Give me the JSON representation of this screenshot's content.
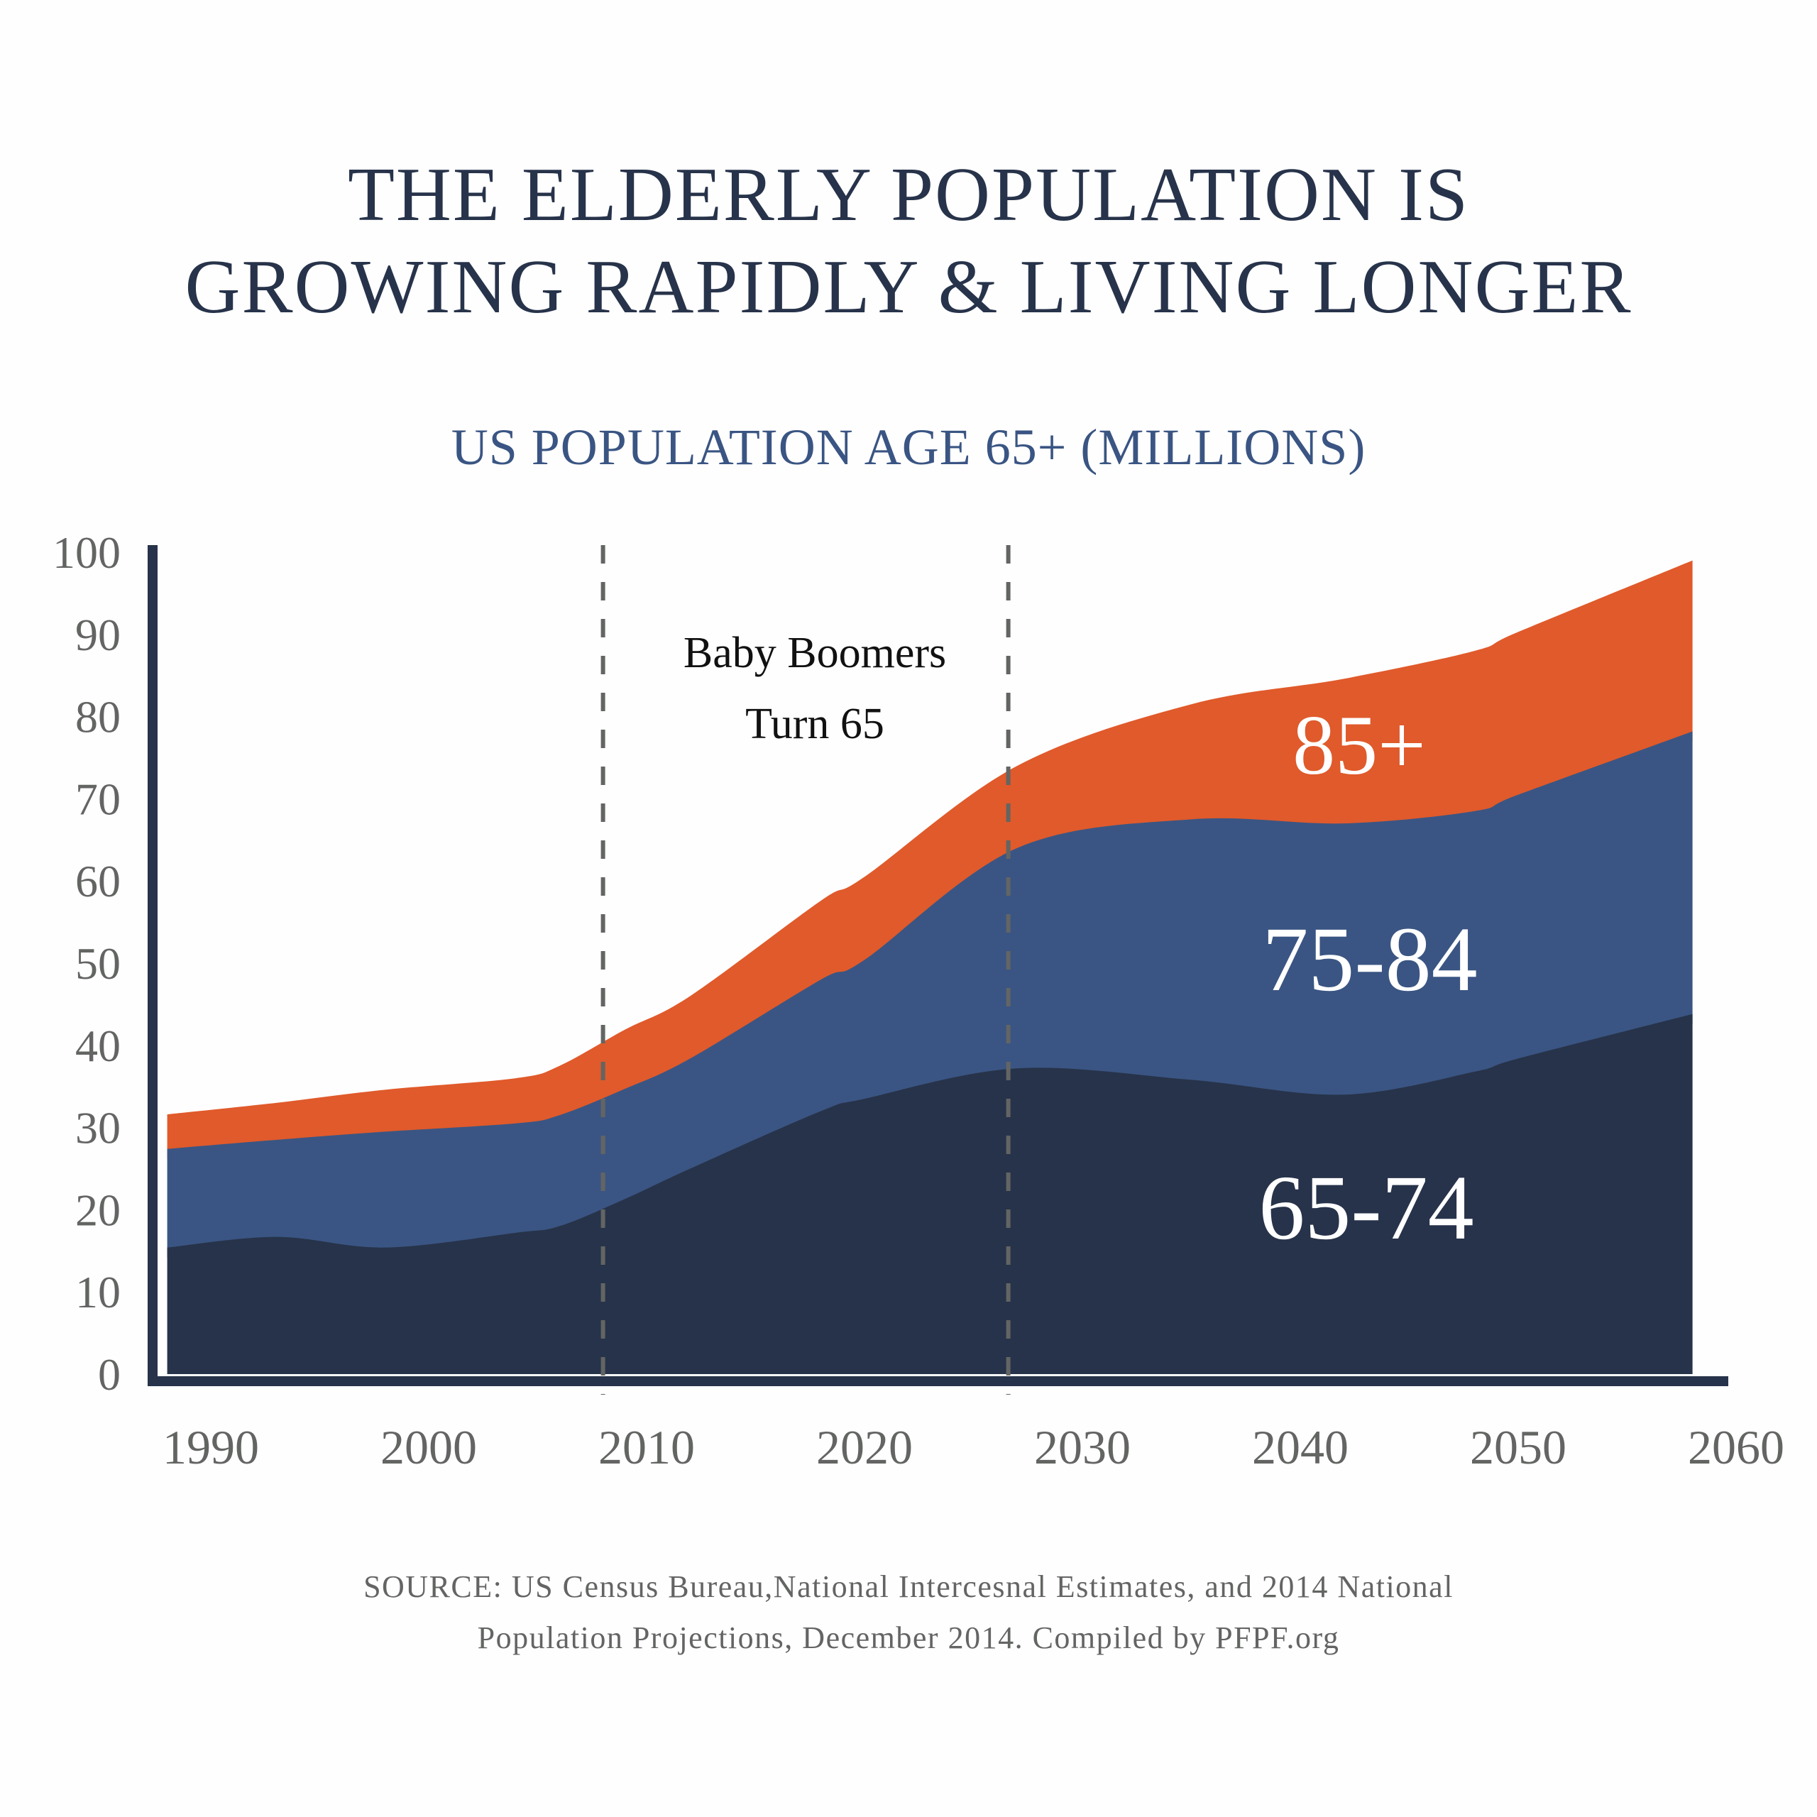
{
  "title": {
    "line1": "THE ELDERLY POPULATION IS",
    "line2": "GROWING RAPIDLY & LIVING LONGER"
  },
  "source": {
    "line1": "SOURCE: US Census Bureau,National Intercesnal Estimates, and 2014 National",
    "line2": "Population Projections, December 2014. Compiled by PFPF.org"
  },
  "colors": {
    "title": "#27334a",
    "subtitle": "#3a5583",
    "axis": "#27334a",
    "tick_text": "#636563",
    "dashed_line": "#636563",
    "age_65_74": "#27334a",
    "age_75_84": "#3a5583",
    "age_85_plus": "#e05a2b",
    "separator": "#ffffff"
  },
  "chart_data": {
    "type": "area",
    "stacked": true,
    "title": "US POPULATION AGE 65+ (MILLIONS)",
    "xlabel": "",
    "ylabel": "",
    "xlim": [
      1988,
      2058
    ],
    "ylim": [
      0,
      100
    ],
    "grid": false,
    "legend": "none (series labeled inside areas)",
    "x_ticks": [
      "1990",
      "2000",
      "2010",
      "2020",
      "2030",
      "2040",
      "2050",
      "2060"
    ],
    "y_ticks": [
      "0",
      "10",
      "20",
      "30",
      "40",
      "50",
      "60",
      "70",
      "80",
      "90",
      "100"
    ],
    "x": [
      1988,
      1993,
      1998,
      2004,
      2006,
      2009,
      2012,
      2018,
      2020,
      2027,
      2035,
      2042,
      2048,
      2050,
      2058
    ],
    "cumulative_tops": {
      "note": "top edge of each stacked band in millions (stacked total up to that band)",
      "age_65_74": [
        15.4,
        16.7,
        15.4,
        17.2,
        18.0,
        21.3,
        25.0,
        32.0,
        33.5,
        37.2,
        35.8,
        34.0,
        36.8,
        38.4,
        43.8
      ],
      "age_75_84": [
        27.4,
        28.5,
        29.5,
        30.5,
        31.5,
        34.7,
        38.4,
        48.0,
        50.4,
        64.0,
        67.5,
        67.0,
        68.5,
        70.5,
        78.2
      ],
      "age_85_plus": [
        31.6,
        33.0,
        34.6,
        36.0,
        37.5,
        41.9,
        46.0,
        57.6,
        60.5,
        74.0,
        81.5,
        84.6,
        88.0,
        90.3,
        99.0
      ]
    },
    "series": [
      {
        "name": "65-74",
        "values": [
          15.4,
          16.7,
          15.4,
          17.2,
          18.0,
          21.3,
          25.0,
          32.0,
          33.5,
          37.2,
          35.8,
          34.0,
          36.8,
          38.4,
          43.8
        ]
      },
      {
        "name": "75-84",
        "values": [
          12.0,
          11.8,
          14.1,
          13.3,
          13.5,
          13.4,
          13.4,
          16.0,
          16.9,
          26.8,
          31.7,
          33.0,
          31.7,
          32.1,
          34.4
        ]
      },
      {
        "name": "85+",
        "values": [
          4.2,
          4.5,
          5.1,
          5.5,
          6.0,
          7.2,
          7.6,
          9.6,
          10.1,
          10.0,
          14.0,
          17.6,
          19.5,
          19.8,
          20.8
        ]
      }
    ],
    "series_labels": [
      "85+",
      "75-84",
      "65-74"
    ],
    "annotations": [
      {
        "text_line1": "Baby Boomers",
        "text_line2": "Turn 65",
        "x_range": [
          2008,
          2026.6
        ],
        "style": "dashed vertical lines"
      }
    ]
  }
}
